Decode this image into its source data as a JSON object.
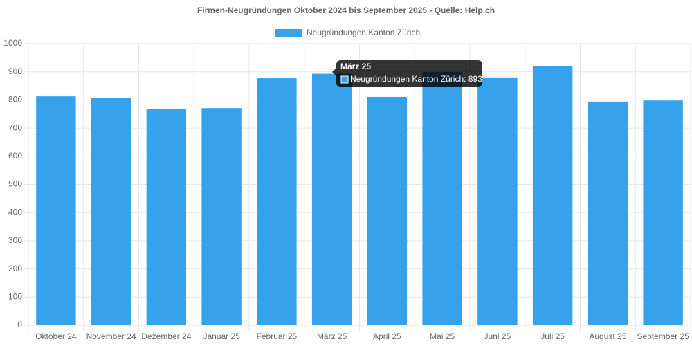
{
  "chart_data": {
    "type": "bar",
    "title": "Firmen-Neugründungen Oktober 2024 bis September 2025 - Quelle: Help.ch",
    "categories": [
      "Oktober 24",
      "November 24",
      "Dezember 24",
      "Januar 25",
      "Februar 25",
      "März 25",
      "April 25",
      "Mai 25",
      "Juni 25",
      "Juli 25",
      "August 25",
      "September 25"
    ],
    "series": [
      {
        "name": "Neugründungen  Kanton Zürich",
        "color": "#36a2eb",
        "values": [
          813,
          806,
          769,
          771,
          877,
          893,
          811,
          899,
          880,
          919,
          794,
          798
        ]
      }
    ],
    "ylim": [
      0,
      1000
    ],
    "yticks": [
      0,
      100,
      200,
      300,
      400,
      500,
      600,
      700,
      800,
      900,
      1000
    ],
    "grid": true,
    "legend": "top",
    "tooltip": {
      "title": "März 25",
      "label": "Neugründungen  Kanton Zürich: 893"
    }
  }
}
